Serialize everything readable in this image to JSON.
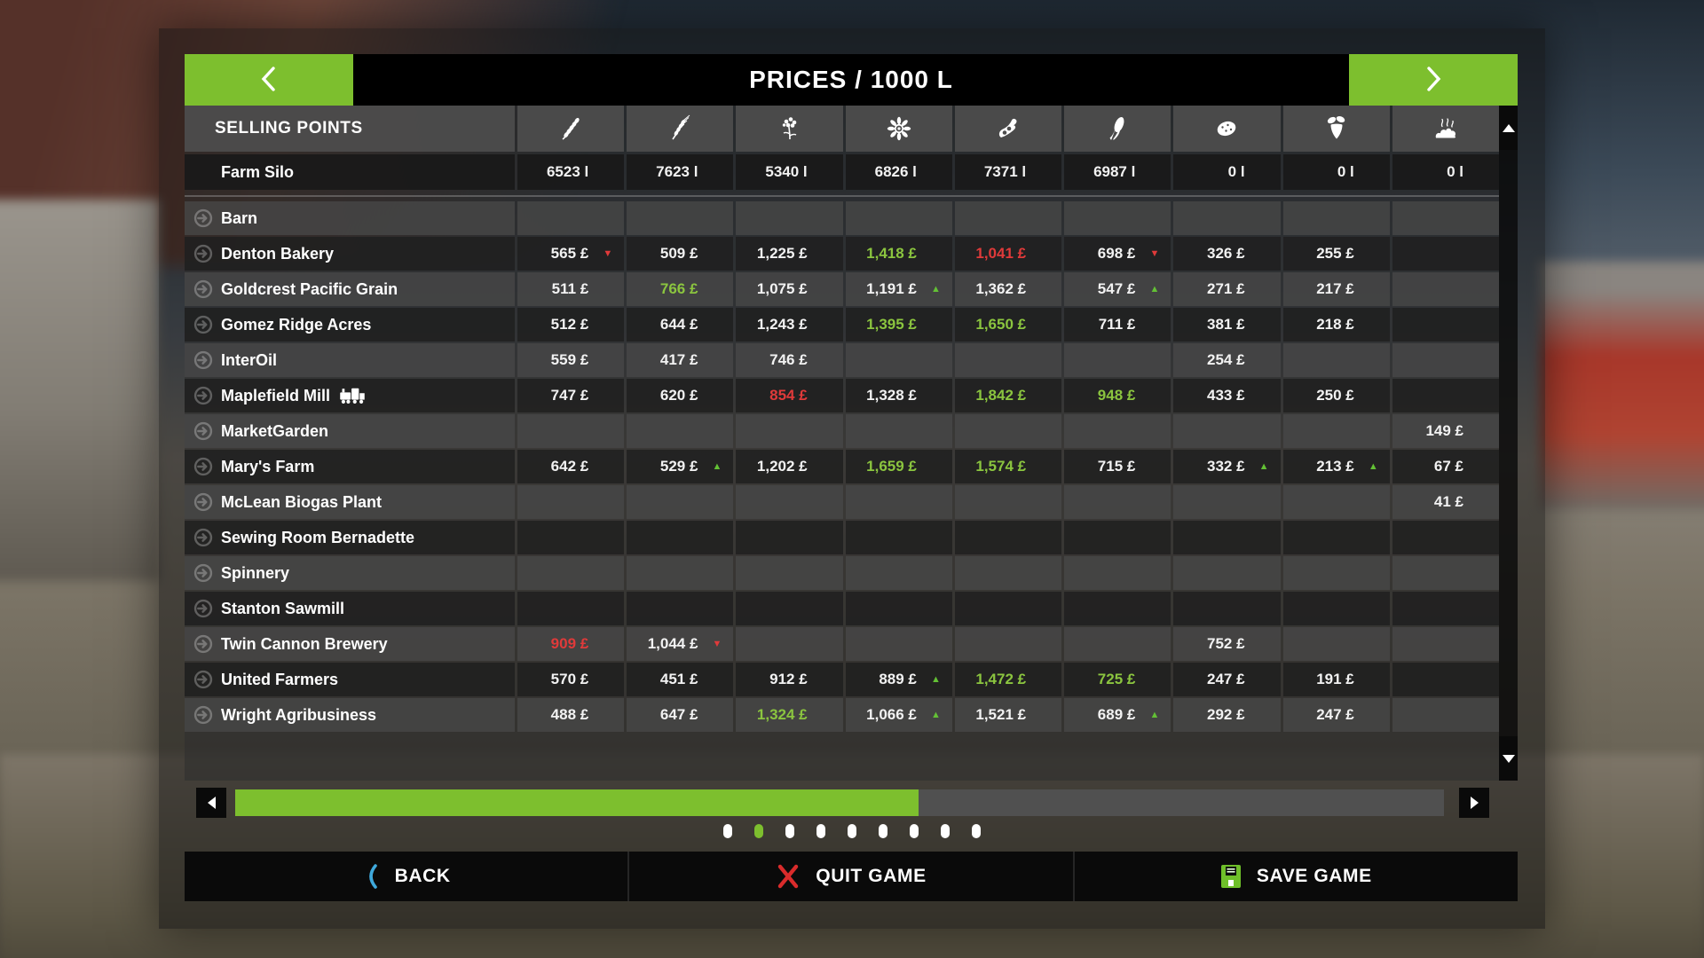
{
  "header": {
    "title": "PRICES / 1000 L"
  },
  "table": {
    "corner_label": "SELLING POINTS",
    "columns": [
      {
        "icon": "wheat-icon"
      },
      {
        "icon": "barley-icon"
      },
      {
        "icon": "canola-icon"
      },
      {
        "icon": "sunflower-icon"
      },
      {
        "icon": "soybean-icon"
      },
      {
        "icon": "corn-icon"
      },
      {
        "icon": "potato-icon"
      },
      {
        "icon": "sugar-beet-icon"
      },
      {
        "icon": "manure-icon"
      }
    ],
    "silo_row": {
      "name": "Farm Silo",
      "values": [
        "6523 l",
        "7623 l",
        "5340 l",
        "6826 l",
        "7371 l",
        "6987 l",
        "0 l",
        "0 l",
        "0 l"
      ]
    },
    "rows": [
      {
        "name": "Barn",
        "cells": [
          null,
          null,
          null,
          null,
          null,
          null,
          null,
          null,
          null
        ]
      },
      {
        "name": "Denton Bakery",
        "cells": [
          {
            "text": "565 £",
            "trend": "down"
          },
          {
            "text": "509 £"
          },
          {
            "text": "1,225 £"
          },
          {
            "text": "1,418 £",
            "color": "green"
          },
          {
            "text": "1,041 £",
            "color": "red"
          },
          {
            "text": "698 £",
            "trend": "down"
          },
          {
            "text": "326 £"
          },
          {
            "text": "255 £"
          },
          null
        ]
      },
      {
        "name": "Goldcrest Pacific Grain",
        "cells": [
          {
            "text": "511 £"
          },
          {
            "text": "766 £",
            "color": "green"
          },
          {
            "text": "1,075 £"
          },
          {
            "text": "1,191 £",
            "trend": "up"
          },
          {
            "text": "1,362 £"
          },
          {
            "text": "547 £",
            "trend": "up"
          },
          {
            "text": "271 £"
          },
          {
            "text": "217 £"
          },
          null
        ]
      },
      {
        "name": "Gomez Ridge Acres",
        "cells": [
          {
            "text": "512 £"
          },
          {
            "text": "644 £"
          },
          {
            "text": "1,243 £"
          },
          {
            "text": "1,395 £",
            "color": "green"
          },
          {
            "text": "1,650 £",
            "color": "green"
          },
          {
            "text": "711 £"
          },
          {
            "text": "381 £"
          },
          {
            "text": "218 £"
          },
          null
        ]
      },
      {
        "name": "InterOil",
        "cells": [
          {
            "text": "559 £"
          },
          {
            "text": "417 £"
          },
          {
            "text": "746 £"
          },
          null,
          null,
          null,
          {
            "text": "254 £"
          },
          null,
          null
        ]
      },
      {
        "name": "Maplefield Mill",
        "badge": "train-icon",
        "cells": [
          {
            "text": "747 £"
          },
          {
            "text": "620 £"
          },
          {
            "text": "854 £",
            "color": "red"
          },
          {
            "text": "1,328 £"
          },
          {
            "text": "1,842 £",
            "color": "green"
          },
          {
            "text": "948 £",
            "color": "green"
          },
          {
            "text": "433 £"
          },
          {
            "text": "250 £"
          },
          null
        ]
      },
      {
        "name": "MarketGarden",
        "cells": [
          null,
          null,
          null,
          null,
          null,
          null,
          null,
          null,
          {
            "text": "149 £"
          }
        ]
      },
      {
        "name": "Mary's Farm",
        "cells": [
          {
            "text": "642 £"
          },
          {
            "text": "529 £",
            "trend": "up"
          },
          {
            "text": "1,202 £"
          },
          {
            "text": "1,659 £",
            "color": "green"
          },
          {
            "text": "1,574 £",
            "color": "green"
          },
          {
            "text": "715 £"
          },
          {
            "text": "332 £",
            "trend": "up"
          },
          {
            "text": "213 £",
            "trend": "up"
          },
          {
            "text": "67 £"
          }
        ]
      },
      {
        "name": "McLean Biogas Plant",
        "cells": [
          null,
          null,
          null,
          null,
          null,
          null,
          null,
          null,
          {
            "text": "41 £"
          }
        ]
      },
      {
        "name": "Sewing Room Bernadette",
        "cells": [
          null,
          null,
          null,
          null,
          null,
          null,
          null,
          null,
          null
        ]
      },
      {
        "name": "Spinnery",
        "cells": [
          null,
          null,
          null,
          null,
          null,
          null,
          null,
          null,
          null
        ]
      },
      {
        "name": "Stanton Sawmill",
        "cells": [
          null,
          null,
          null,
          null,
          null,
          null,
          null,
          null,
          null
        ]
      },
      {
        "name": "Twin Cannon Brewery",
        "cells": [
          {
            "text": "909 £",
            "color": "red"
          },
          {
            "text": "1,044 £",
            "trend": "down"
          },
          null,
          null,
          null,
          null,
          {
            "text": "752 £"
          },
          null,
          null
        ]
      },
      {
        "name": "United Farmers",
        "cells": [
          {
            "text": "570 £"
          },
          {
            "text": "451 £"
          },
          {
            "text": "912 £"
          },
          {
            "text": "889 £",
            "trend": "up"
          },
          {
            "text": "1,472 £",
            "color": "green"
          },
          {
            "text": "725 £",
            "color": "green"
          },
          {
            "text": "247 £"
          },
          {
            "text": "191 £"
          },
          null
        ]
      },
      {
        "name": "Wright Agribusiness",
        "cells": [
          {
            "text": "488 £"
          },
          {
            "text": "647 £"
          },
          {
            "text": "1,324 £",
            "color": "green"
          },
          {
            "text": "1,066 £",
            "trend": "up"
          },
          {
            "text": "1,521 £"
          },
          {
            "text": "689 £",
            "trend": "up"
          },
          {
            "text": "292 £"
          },
          {
            "text": "247 £"
          },
          null
        ]
      }
    ]
  },
  "scrollbar": {
    "fill_percent": 56.5
  },
  "pagination": {
    "dots": 9,
    "active_index": 1
  },
  "footer": {
    "back_label": "BACK",
    "quit_label": "QUIT GAME",
    "save_label": "SAVE GAME"
  },
  "colors": {
    "accent_green": "#7dbf2e",
    "price_green": "#8bc53f",
    "price_red": "#e03a3a",
    "back_blue": "#3fa9dc",
    "quit_red": "#d92b2b"
  }
}
